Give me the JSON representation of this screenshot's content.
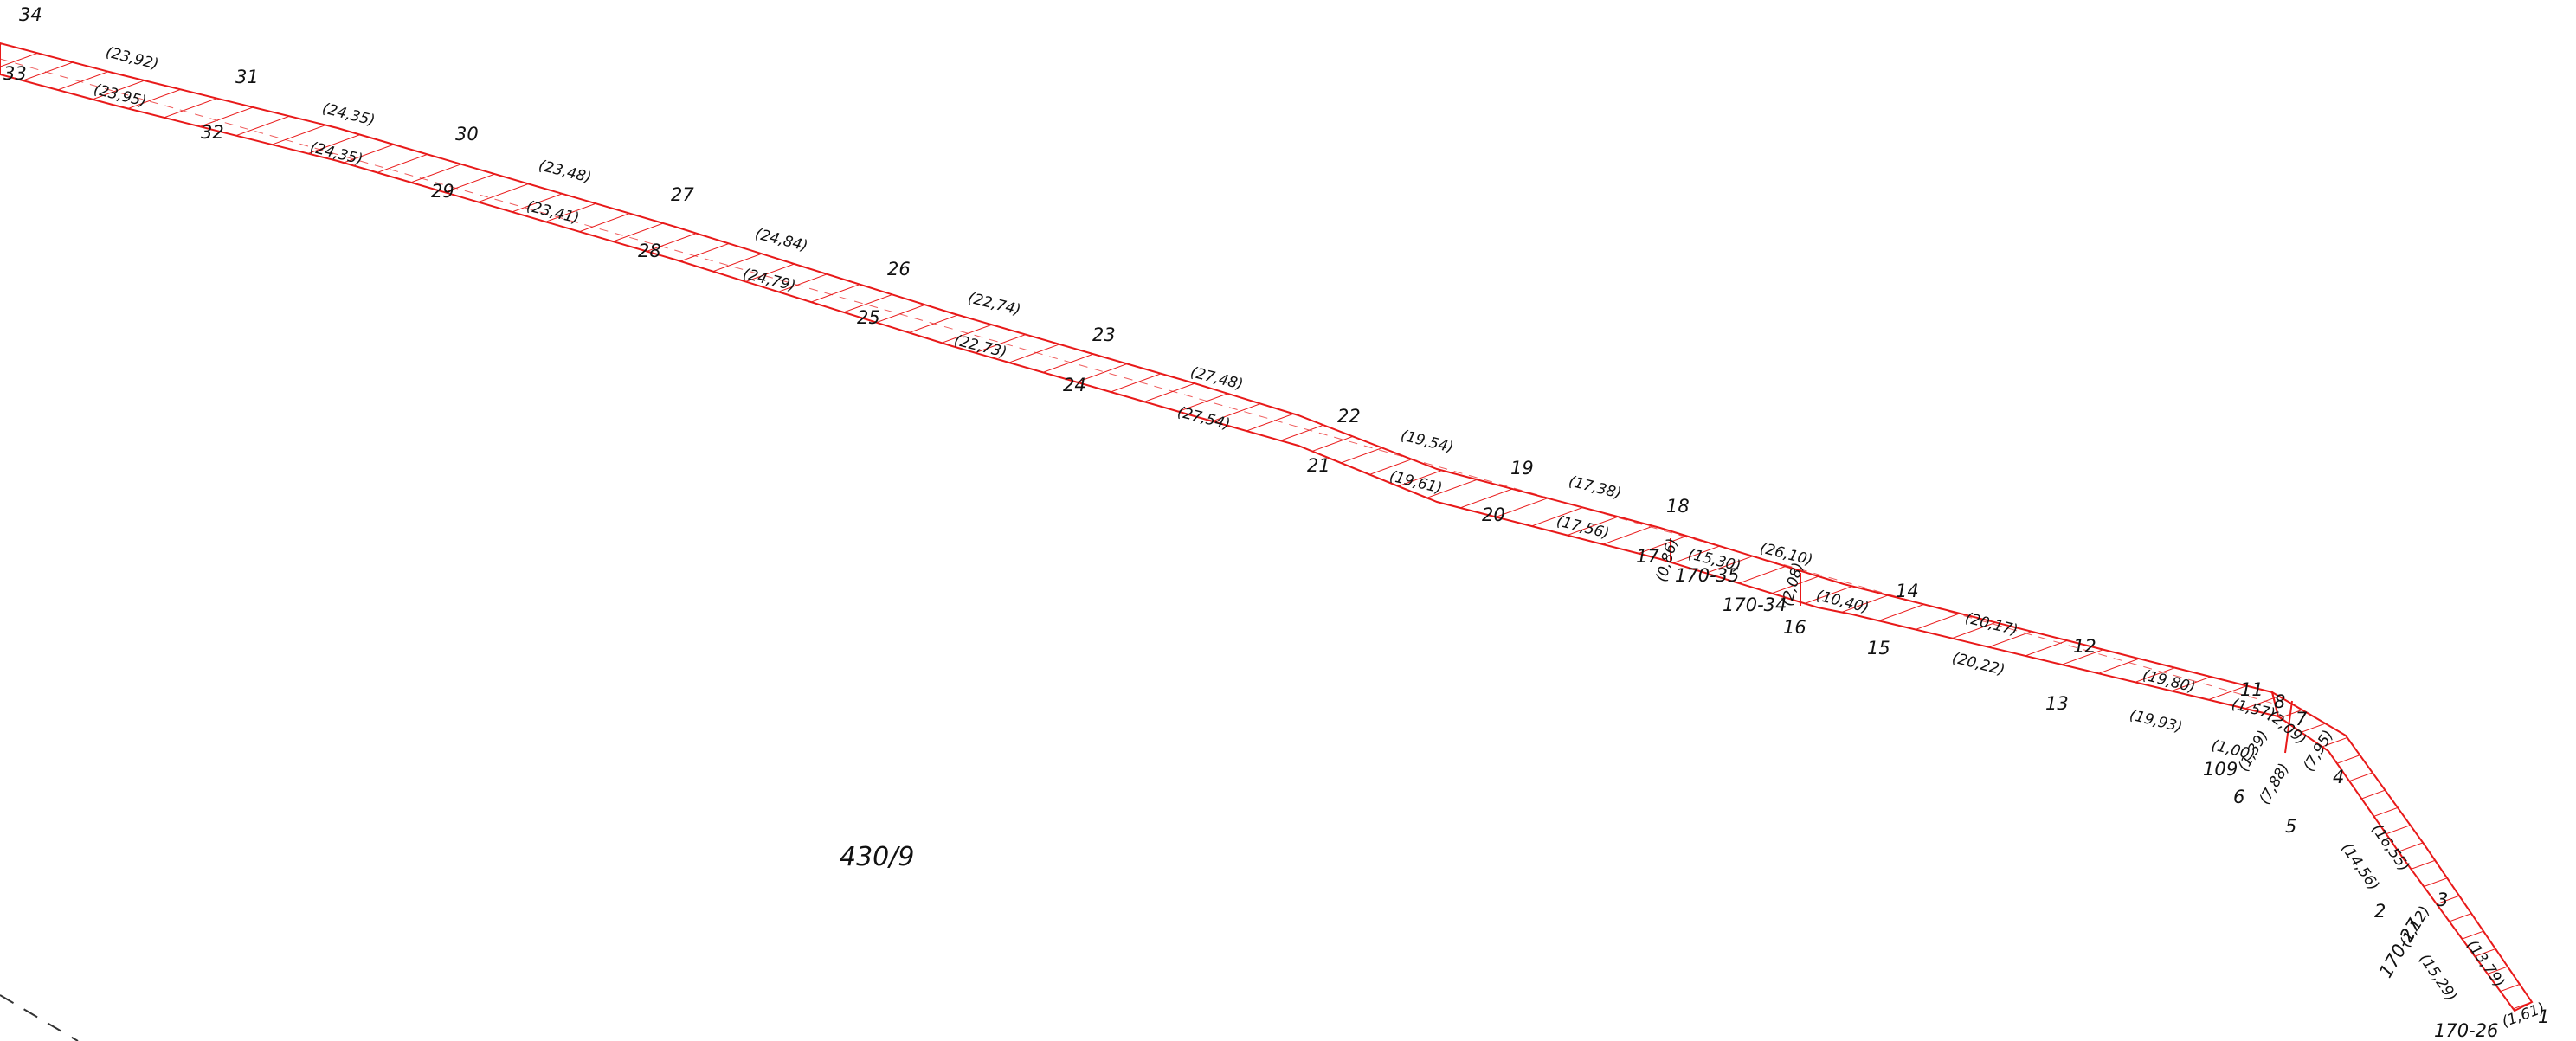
{
  "colors": {
    "strip": "#e81919",
    "text": "#111111",
    "background": "#ffffff",
    "dashed_line": "#333333"
  },
  "parcel_label": "430/9",
  "point_numbers": [
    "34",
    "33",
    "31",
    "32",
    "30",
    "29",
    "27",
    "28",
    "26",
    "25",
    "23",
    "24",
    "22",
    "21",
    "19",
    "20",
    "18",
    "17",
    "170-35",
    "170-34",
    "16",
    "14",
    "15",
    "12",
    "13",
    "11",
    "8",
    "7",
    "10",
    "9",
    "6",
    "4",
    "5",
    "3",
    "2",
    "170-27",
    "170-26",
    "1"
  ],
  "distances": [
    "(23,92)",
    "(23,95)",
    "(24,35)",
    "(24,35)",
    "(23,48)",
    "(23,41)",
    "(24,84)",
    "(24,79)",
    "(22,74)",
    "(22,73)",
    "(27,48)",
    "(27,54)",
    "(19,54)",
    "(19,61)",
    "(17,38)",
    "(17,56)",
    "(0,86)",
    "(15,30)",
    "(26,10)",
    "(2,08)",
    "(10,40)",
    "(20,17)",
    "(20,22)",
    "(19,80)",
    "(19,93)",
    "(1,57)",
    "(2,09)",
    "(7,95)",
    "(1,00)",
    "(1,39)",
    "(7,88)",
    "(16,55)",
    "(14,56)",
    "(1,12)",
    "(13,79)",
    "(15,29)",
    "(1,61)"
  ]
}
